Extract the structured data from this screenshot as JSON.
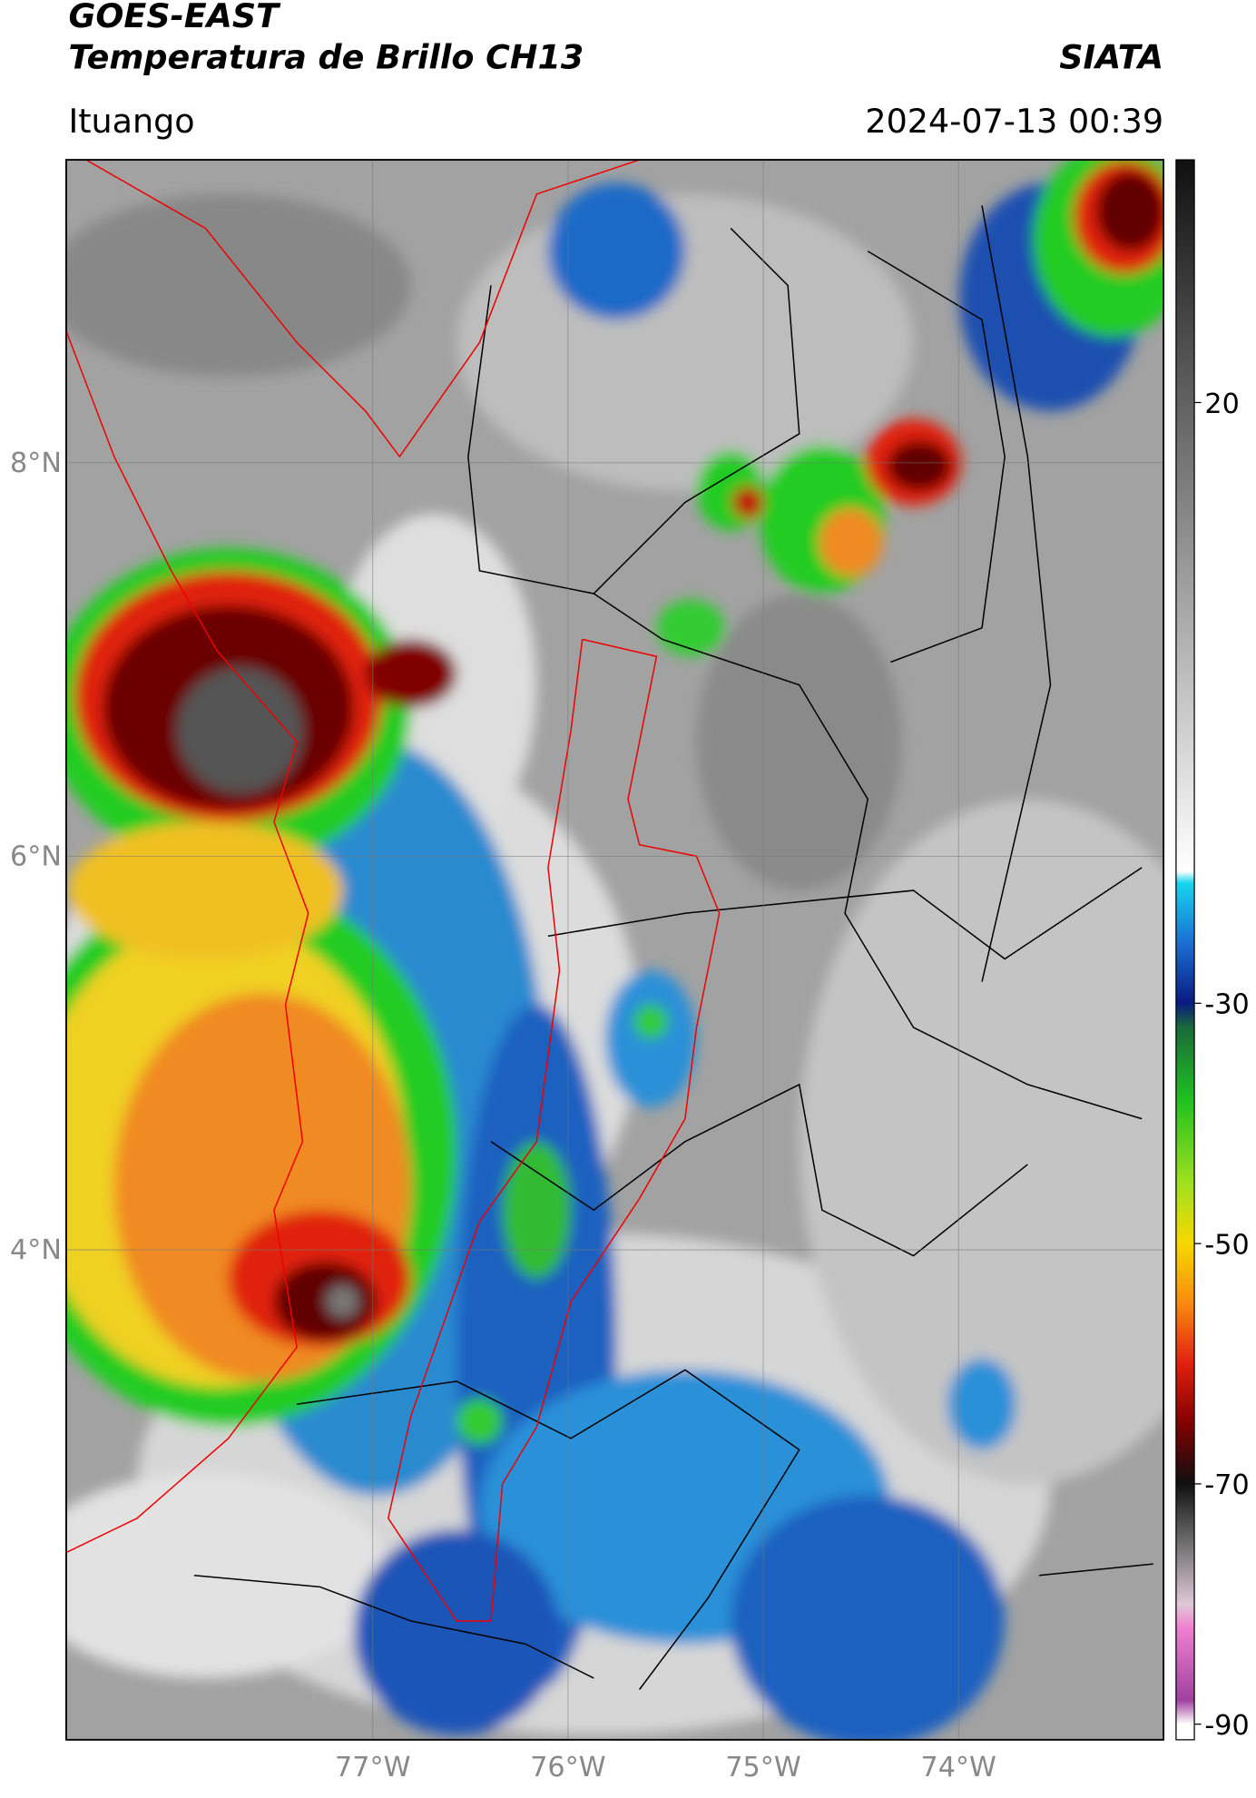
{
  "header": {
    "title": "GOES-EAST",
    "subtitle": "Temperatura de Brillo CH13",
    "source": "SIATA",
    "location": "Ituango",
    "datetime": "2024-07-13 00:39"
  },
  "chart_data": {
    "type": "map",
    "xlim": [
      -78.57,
      -72.95
    ],
    "ylim": [
      1.51,
      9.54
    ],
    "xticks": [
      {
        "value": -77,
        "label": "77°W"
      },
      {
        "value": -76,
        "label": "76°W"
      },
      {
        "value": -75,
        "label": "75°W"
      },
      {
        "value": -74,
        "label": "74°W"
      }
    ],
    "yticks": [
      {
        "value": 8,
        "label": "8°N"
      },
      {
        "value": 6,
        "label": "6°N"
      },
      {
        "value": 4,
        "label": "4°N"
      }
    ],
    "grid": true,
    "colorbar": {
      "lim": [
        -91.3,
        40.2
      ],
      "ticks": [
        20,
        -30,
        -50,
        -70,
        -90
      ],
      "colormap": [
        {
          "value": 40,
          "color": "#111111"
        },
        {
          "value": -19,
          "color": "#ffffff"
        },
        {
          "value": -20,
          "color": "#19d4f0"
        },
        {
          "value": -25,
          "color": "#1a6fd0"
        },
        {
          "value": -30,
          "color": "#0a1a80"
        },
        {
          "value": -32,
          "color": "#1a6a3a"
        },
        {
          "value": -38,
          "color": "#20c020"
        },
        {
          "value": -45,
          "color": "#a0e020"
        },
        {
          "value": -50,
          "color": "#f8d800"
        },
        {
          "value": -55,
          "color": "#f88a10"
        },
        {
          "value": -60,
          "color": "#e02010"
        },
        {
          "value": -65,
          "color": "#800000"
        },
        {
          "value": -70,
          "color": "#101010"
        },
        {
          "value": -75,
          "color": "#707070"
        },
        {
          "value": -80,
          "color": "#e0c8d8"
        },
        {
          "value": -82,
          "color": "#f080d0"
        },
        {
          "value": -88,
          "color": "#a040a0"
        },
        {
          "value": -90,
          "color": "#ffffff"
        }
      ]
    }
  }
}
